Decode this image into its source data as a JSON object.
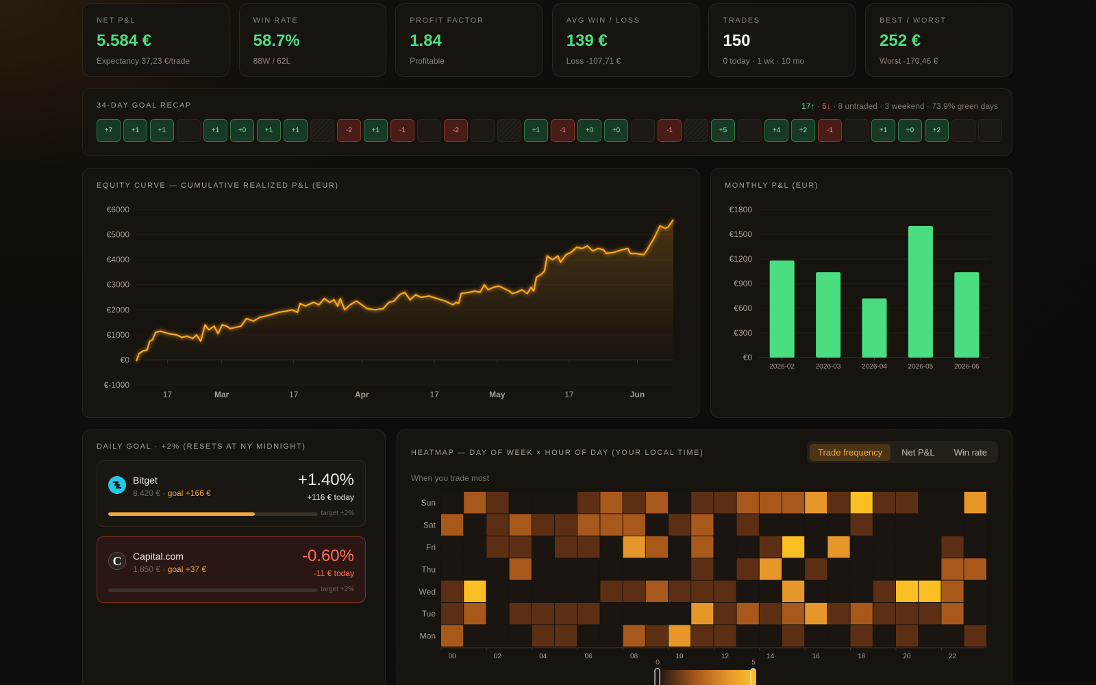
{
  "kpis": [
    {
      "label": "NET P&L",
      "value": "5.584 €",
      "sub": "Expectancy 37,23 €/trade",
      "tone": "green"
    },
    {
      "label": "WIN RATE",
      "value": "58.7%",
      "sub": "88W / 62L",
      "tone": "green"
    },
    {
      "label": "PROFIT FACTOR",
      "value": "1.84",
      "sub": "Profitable",
      "tone": "green"
    },
    {
      "label": "AVG WIN / LOSS",
      "value": "139 €",
      "sub": "Loss -107,71 €",
      "tone": "green"
    },
    {
      "label": "TRADES",
      "value": "150",
      "sub": "0 today · 1 wk · 10 mo",
      "tone": "white"
    },
    {
      "label": "BEST / WORST",
      "value": "252 €",
      "sub": "Worst -170,46 €",
      "tone": "green"
    }
  ],
  "recap": {
    "title": "34-DAY GOAL RECAP",
    "up": "17↑",
    "sep1": " · ",
    "down": "6↓",
    "rest": " · 8 untraded · 3 weekend · 73.9% green days",
    "days": [
      {
        "t": "pos",
        "v": "+7"
      },
      {
        "t": "pos",
        "v": "+1"
      },
      {
        "t": "pos",
        "v": "+1"
      },
      {
        "t": "empty",
        "v": ""
      },
      {
        "t": "pos",
        "v": "+1"
      },
      {
        "t": "pos",
        "v": "+0"
      },
      {
        "t": "pos",
        "v": "+1"
      },
      {
        "t": "pos",
        "v": "+1"
      },
      {
        "t": "wkd",
        "v": ""
      },
      {
        "t": "neg",
        "v": "-2"
      },
      {
        "t": "pos",
        "v": "+1"
      },
      {
        "t": "neg",
        "v": "-1"
      },
      {
        "t": "empty",
        "v": ""
      },
      {
        "t": "neg",
        "v": "-2"
      },
      {
        "t": "empty",
        "v": ""
      },
      {
        "t": "wkd",
        "v": ""
      },
      {
        "t": "pos",
        "v": "+1"
      },
      {
        "t": "neg",
        "v": "-1"
      },
      {
        "t": "pos",
        "v": "+0"
      },
      {
        "t": "pos",
        "v": "+0"
      },
      {
        "t": "empty",
        "v": ""
      },
      {
        "t": "neg",
        "v": "-1"
      },
      {
        "t": "wkd",
        "v": ""
      },
      {
        "t": "pos",
        "v": "+5"
      },
      {
        "t": "empty",
        "v": ""
      },
      {
        "t": "pos",
        "v": "+4"
      },
      {
        "t": "pos",
        "v": "+2"
      },
      {
        "t": "neg",
        "v": "-1"
      },
      {
        "t": "empty",
        "v": ""
      },
      {
        "t": "pos",
        "v": "+1"
      },
      {
        "t": "pos",
        "v": "+0"
      },
      {
        "t": "pos",
        "v": "+2"
      },
      {
        "t": "empty",
        "v": ""
      },
      {
        "t": "empty",
        "v": ""
      }
    ]
  },
  "equity": {
    "title": "EQUITY CURVE — CUMULATIVE REALIZED P&L (EUR)",
    "accent": "#f5a524"
  },
  "monthly": {
    "title": "MONTHLY P&L (EUR)",
    "accent": "#4ade80"
  },
  "daily_goal": {
    "title": "DAILY GOAL · +2% (RESETS AT NY MIDNIGHT)",
    "accounts": [
      {
        "name": "Bitget",
        "balance": "8.420 € · ",
        "goal": "goal +166 €",
        "pct": "+1.40%",
        "today": "+116 € today",
        "progress": 0.7,
        "target": "target +2%",
        "icon": "bitget-logo-icon"
      },
      {
        "name": "Capital.com",
        "balance": "1.850 € · ",
        "goal": "goal +37 €",
        "pct": "-0.60%",
        "today": "-11 € today",
        "progress": 0,
        "target": "target +2%",
        "icon": "capital-com-logo-icon"
      }
    ]
  },
  "heatmap": {
    "title": "HEATMAP — DAY OF WEEK × HOUR OF DAY (YOUR LOCAL TIME)",
    "subtitle": "When you trade most",
    "tabs": [
      "Trade frequency",
      "Net P&L",
      "Win rate"
    ],
    "active_tab": "Trade frequency",
    "legend_min": "0",
    "legend_max": "5"
  },
  "chart_data": [
    {
      "type": "line",
      "title": "EQUITY CURVE — CUMULATIVE REALIZED P&L (EUR)",
      "ylim": [
        -1000,
        6000
      ],
      "y_ticks": [
        "€-1000",
        "€0",
        "€1000",
        "€2000",
        "€3000",
        "€4000",
        "€5000",
        "€6000"
      ],
      "x_ticks": [
        {
          "label": "17",
          "bold": false,
          "t": 0.058
        },
        {
          "label": "Mar",
          "bold": true,
          "t": 0.159
        },
        {
          "label": "17",
          "bold": false,
          "t": 0.293
        },
        {
          "label": "Apr",
          "bold": true,
          "t": 0.42
        },
        {
          "label": "17",
          "bold": false,
          "t": 0.555
        },
        {
          "label": "May",
          "bold": true,
          "t": 0.672
        },
        {
          "label": "17",
          "bold": false,
          "t": 0.806
        },
        {
          "label": "Jun",
          "bold": true,
          "t": 0.933
        }
      ],
      "series": [
        {
          "points": [
            [
              0,
              -50
            ],
            [
              0.005,
              250
            ],
            [
              0.012,
              350
            ],
            [
              0.02,
              400
            ],
            [
              0.025,
              750
            ],
            [
              0.03,
              800
            ],
            [
              0.036,
              1100
            ],
            [
              0.045,
              1150
            ],
            [
              0.06,
              1050
            ],
            [
              0.075,
              1000
            ],
            [
              0.085,
              900
            ],
            [
              0.095,
              950
            ],
            [
              0.105,
              850
            ],
            [
              0.112,
              1000
            ],
            [
              0.12,
              750
            ],
            [
              0.128,
              1400
            ],
            [
              0.135,
              1200
            ],
            [
              0.145,
              1350
            ],
            [
              0.152,
              1050
            ],
            [
              0.16,
              1400
            ],
            [
              0.168,
              1350
            ],
            [
              0.175,
              1250
            ],
            [
              0.185,
              1300
            ],
            [
              0.195,
              1350
            ],
            [
              0.205,
              1650
            ],
            [
              0.218,
              1550
            ],
            [
              0.23,
              1700
            ],
            [
              0.25,
              1800
            ],
            [
              0.265,
              1900
            ],
            [
              0.28,
              1950
            ],
            [
              0.29,
              2000
            ],
            [
              0.3,
              1900
            ],
            [
              0.305,
              2250
            ],
            [
              0.315,
              2150
            ],
            [
              0.33,
              2300
            ],
            [
              0.34,
              2200
            ],
            [
              0.35,
              2450
            ],
            [
              0.36,
              2300
            ],
            [
              0.368,
              2400
            ],
            [
              0.375,
              2150
            ],
            [
              0.38,
              2450
            ],
            [
              0.388,
              2000
            ],
            [
              0.398,
              2200
            ],
            [
              0.41,
              2350
            ],
            [
              0.42,
              2200
            ],
            [
              0.43,
              2050
            ],
            [
              0.445,
              2000
            ],
            [
              0.46,
              2050
            ],
            [
              0.47,
              2300
            ],
            [
              0.48,
              2350
            ],
            [
              0.49,
              2600
            ],
            [
              0.5,
              2700
            ],
            [
              0.51,
              2400
            ],
            [
              0.52,
              2600
            ],
            [
              0.53,
              2500
            ],
            [
              0.545,
              2550
            ],
            [
              0.56,
              2450
            ],
            [
              0.575,
              2350
            ],
            [
              0.59,
              2200
            ],
            [
              0.595,
              2300
            ],
            [
              0.6,
              2250
            ],
            [
              0.605,
              2650
            ],
            [
              0.62,
              2700
            ],
            [
              0.63,
              2750
            ],
            [
              0.64,
              2700
            ],
            [
              0.648,
              3000
            ],
            [
              0.655,
              2800
            ],
            [
              0.665,
              2900
            ],
            [
              0.675,
              2950
            ],
            [
              0.685,
              2850
            ],
            [
              0.695,
              2750
            ],
            [
              0.7,
              2650
            ],
            [
              0.708,
              2700
            ],
            [
              0.718,
              2800
            ],
            [
              0.728,
              2650
            ],
            [
              0.735,
              2900
            ],
            [
              0.74,
              2750
            ],
            [
              0.745,
              3300
            ],
            [
              0.753,
              3400
            ],
            [
              0.76,
              3550
            ],
            [
              0.765,
              4150
            ],
            [
              0.775,
              4000
            ],
            [
              0.785,
              4150
            ],
            [
              0.79,
              3900
            ],
            [
              0.8,
              4200
            ],
            [
              0.81,
              4300
            ],
            [
              0.82,
              4500
            ],
            [
              0.83,
              4450
            ],
            [
              0.84,
              4550
            ],
            [
              0.85,
              4350
            ],
            [
              0.86,
              4450
            ],
            [
              0.87,
              4400
            ],
            [
              0.875,
              4250
            ],
            [
              0.89,
              4300
            ],
            [
              0.905,
              4400
            ],
            [
              0.915,
              4450
            ],
            [
              0.92,
              4250
            ],
            [
              0.93,
              4250
            ],
            [
              0.945,
              4200
            ],
            [
              0.95,
              4350
            ],
            [
              0.958,
              4650
            ],
            [
              0.965,
              4900
            ],
            [
              0.975,
              5350
            ],
            [
              0.985,
              5250
            ],
            [
              0.99,
              5300
            ],
            [
              1.0,
              5600
            ]
          ]
        }
      ]
    },
    {
      "type": "bar",
      "title": "MONTHLY P&L (EUR)",
      "categories": [
        "2026-02",
        "2026-03",
        "2026-04",
        "2026-05",
        "2026-06"
      ],
      "values": [
        1180,
        1040,
        720,
        1600,
        1040
      ],
      "ylim": [
        0,
        1800
      ],
      "y_ticks": [
        "€0",
        "€300",
        "€600",
        "€900",
        "€1200",
        "€1500",
        "€1800"
      ]
    },
    {
      "type": "heatmap",
      "rows": [
        "Sun",
        "Sat",
        "Fri",
        "Thu",
        "Wed",
        "Tue",
        "Mon"
      ],
      "x_labels": [
        "00",
        "02",
        "04",
        "06",
        "08",
        "10",
        "12",
        "14",
        "16",
        "18",
        "20",
        "22"
      ],
      "scale": [
        0,
        5
      ],
      "values": [
        [
          0,
          3,
          2,
          0,
          0,
          0,
          2,
          3,
          2,
          3,
          0,
          2,
          2,
          3,
          3,
          3,
          4,
          2,
          5,
          2,
          2,
          0,
          0,
          4
        ],
        [
          3,
          0,
          2,
          3,
          2,
          2,
          3,
          3,
          3,
          0,
          2,
          3,
          0,
          2,
          0,
          0,
          0,
          0,
          2,
          0,
          0,
          0,
          0,
          0
        ],
        [
          0,
          0,
          2,
          2,
          0,
          2,
          2,
          0,
          4,
          3,
          0,
          3,
          0,
          0,
          2,
          5,
          0,
          4,
          0,
          0,
          0,
          0,
          2,
          0
        ],
        [
          0,
          0,
          0,
          3,
          0,
          0,
          0,
          0,
          0,
          0,
          0,
          2,
          0,
          2,
          4,
          0,
          2,
          0,
          0,
          0,
          0,
          0,
          3,
          3
        ],
        [
          2,
          5,
          0,
          0,
          0,
          0,
          0,
          2,
          2,
          3,
          2,
          2,
          2,
          0,
          0,
          4,
          0,
          0,
          0,
          2,
          5,
          5,
          3,
          0
        ],
        [
          2,
          3,
          0,
          2,
          2,
          2,
          2,
          0,
          0,
          0,
          0,
          4,
          2,
          3,
          2,
          3,
          4,
          2,
          3,
          2,
          2,
          2,
          3,
          0
        ],
        [
          3,
          0,
          0,
          0,
          2,
          2,
          0,
          0,
          3,
          2,
          4,
          2,
          2,
          0,
          0,
          2,
          0,
          0,
          2,
          0,
          2,
          0,
          0,
          2
        ]
      ]
    }
  ]
}
